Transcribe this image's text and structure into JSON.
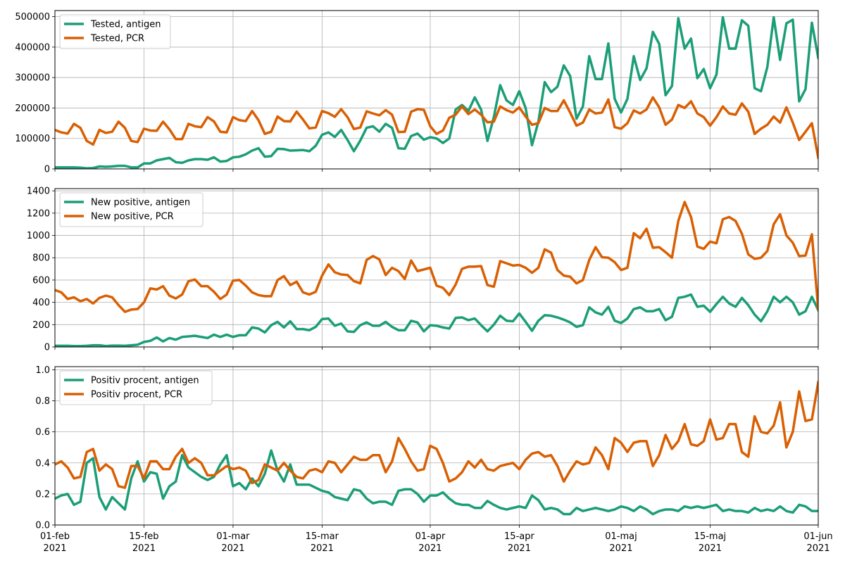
{
  "chart_data": [
    {
      "type": "line",
      "x_start": "2021-02-01",
      "x_end": "2021-06-01",
      "ylim": [
        0,
        520000
      ],
      "yticks": [
        0,
        100000,
        200000,
        300000,
        400000,
        500000
      ],
      "grid": true,
      "legend": "top-left",
      "series": [
        {
          "name": "Tested, antigen",
          "color": "#1b9e77",
          "values": [
            5000,
            5000,
            5000,
            5000,
            4000,
            2000,
            3000,
            8000,
            7000,
            8000,
            10000,
            10000,
            5000,
            5000,
            18000,
            18000,
            28000,
            32000,
            36000,
            22000,
            20000,
            28000,
            32000,
            32000,
            30000,
            38000,
            24000,
            26000,
            38000,
            40000,
            48000,
            60000,
            68000,
            40000,
            42000,
            66000,
            65000,
            60000,
            61000,
            62000,
            58000,
            76000,
            112000,
            120000,
            105000,
            128000,
            95000,
            58000,
            93000,
            135000,
            140000,
            122000,
            148000,
            135000,
            68000,
            66000,
            108000,
            116000,
            96000,
            104000,
            100000,
            85000,
            100000,
            195000,
            210000,
            190000,
            235000,
            195000,
            92000,
            170000,
            275000,
            225000,
            210000,
            255000,
            200000,
            78000,
            155000,
            285000,
            252000,
            270000,
            340000,
            305000,
            165000,
            205000,
            370000,
            295000,
            295000,
            412000,
            230000,
            185000,
            230000,
            370000,
            292000,
            330000,
            450000,
            410000,
            242000,
            272000,
            495000,
            395000,
            428000,
            298000,
            328000,
            265000,
            310000,
            498000,
            395000,
            395000,
            488000,
            470000,
            265000,
            255000,
            335000,
            498000,
            358000,
            478000,
            490000,
            222000,
            262000,
            480000,
            365000
          ]
        },
        {
          "name": "Tested, PCR",
          "color": "#d95f02",
          "values": [
            128000,
            120000,
            116000,
            148000,
            135000,
            92000,
            80000,
            128000,
            118000,
            122000,
            155000,
            135000,
            92000,
            88000,
            132000,
            126000,
            125000,
            155000,
            130000,
            98000,
            98000,
            148000,
            140000,
            137000,
            170000,
            156000,
            122000,
            120000,
            170000,
            160000,
            157000,
            190000,
            160000,
            115000,
            122000,
            172000,
            157000,
            156000,
            188000,
            162000,
            133000,
            136000,
            190000,
            183000,
            171000,
            196000,
            170000,
            131000,
            136000,
            189000,
            182000,
            176000,
            193000,
            178000,
            121000,
            122000,
            188000,
            196000,
            194000,
            140000,
            115000,
            126000,
            168000,
            178000,
            205000,
            180000,
            195000,
            178000,
            153000,
            155000,
            205000,
            193000,
            185000,
            202000,
            172000,
            145000,
            150000,
            200000,
            190000,
            190000,
            225000,
            185000,
            142000,
            152000,
            195000,
            182000,
            185000,
            228000,
            137000,
            132000,
            150000,
            192000,
            182000,
            195000,
            235000,
            202000,
            145000,
            162000,
            210000,
            200000,
            222000,
            182000,
            170000,
            142000,
            170000,
            205000,
            182000,
            178000,
            215000,
            188000,
            115000,
            132000,
            145000,
            172000,
            152000,
            202000,
            152000,
            95000,
            122000,
            150000,
            37000
          ]
        }
      ]
    },
    {
      "type": "line",
      "x_start": "2021-02-01",
      "x_end": "2021-06-01",
      "ylim": [
        0,
        1420
      ],
      "yticks": [
        0,
        200,
        400,
        600,
        800,
        1000,
        1200,
        1400
      ],
      "grid": true,
      "legend": "top-left",
      "series": [
        {
          "name": "New positive, antigen",
          "color": "#1b9e77",
          "values": [
            10,
            10,
            10,
            8,
            8,
            10,
            15,
            15,
            8,
            12,
            12,
            10,
            15,
            20,
            45,
            55,
            85,
            50,
            80,
            65,
            90,
            95,
            100,
            90,
            80,
            110,
            90,
            110,
            90,
            105,
            105,
            175,
            165,
            130,
            195,
            225,
            175,
            230,
            160,
            160,
            150,
            180,
            250,
            255,
            190,
            210,
            140,
            135,
            195,
            220,
            190,
            190,
            225,
            180,
            150,
            150,
            235,
            220,
            140,
            195,
            190,
            175,
            165,
            260,
            265,
            240,
            255,
            195,
            140,
            200,
            280,
            235,
            230,
            300,
            225,
            145,
            235,
            285,
            280,
            265,
            245,
            220,
            180,
            195,
            355,
            310,
            290,
            360,
            235,
            215,
            255,
            340,
            355,
            320,
            320,
            340,
            240,
            270,
            440,
            450,
            470,
            360,
            370,
            315,
            385,
            450,
            390,
            360,
            440,
            375,
            290,
            230,
            320,
            450,
            400,
            450,
            400,
            290,
            320,
            450,
            330
          ]
        },
        {
          "name": "New positive, PCR",
          "color": "#d95f02",
          "values": [
            510,
            490,
            430,
            445,
            410,
            430,
            390,
            440,
            460,
            445,
            375,
            315,
            335,
            340,
            400,
            525,
            515,
            545,
            460,
            435,
            470,
            590,
            605,
            545,
            545,
            495,
            430,
            470,
            595,
            600,
            550,
            490,
            465,
            455,
            455,
            600,
            635,
            555,
            585,
            490,
            470,
            495,
            640,
            740,
            670,
            650,
            645,
            590,
            570,
            780,
            815,
            785,
            645,
            710,
            680,
            610,
            775,
            680,
            695,
            710,
            550,
            530,
            465,
            560,
            700,
            720,
            720,
            725,
            555,
            540,
            770,
            750,
            730,
            735,
            710,
            665,
            710,
            875,
            845,
            690,
            640,
            630,
            570,
            600,
            780,
            895,
            805,
            800,
            760,
            690,
            710,
            1020,
            975,
            1060,
            890,
            895,
            850,
            800,
            1130,
            1300,
            1165,
            900,
            880,
            945,
            930,
            1145,
            1165,
            1130,
            1015,
            830,
            790,
            800,
            860,
            1100,
            1190,
            1000,
            935,
            815,
            820,
            1010,
            340
          ]
        }
      ]
    },
    {
      "type": "line",
      "x_start": "2021-02-01",
      "x_end": "2021-06-01",
      "ylim": [
        0,
        1.02
      ],
      "yticks": [
        0.0,
        0.2,
        0.4,
        0.6,
        0.8,
        1.0
      ],
      "grid": true,
      "legend": "top-left",
      "series": [
        {
          "name": "Positiv procent, antigen",
          "color": "#1b9e77",
          "values": [
            0.17,
            0.19,
            0.2,
            0.13,
            0.15,
            0.4,
            0.43,
            0.18,
            0.1,
            0.18,
            0.14,
            0.1,
            0.3,
            0.41,
            0.28,
            0.34,
            0.33,
            0.17,
            0.25,
            0.28,
            0.45,
            0.37,
            0.34,
            0.31,
            0.29,
            0.31,
            0.39,
            0.45,
            0.25,
            0.27,
            0.23,
            0.3,
            0.25,
            0.33,
            0.48,
            0.35,
            0.28,
            0.39,
            0.26,
            0.26,
            0.26,
            0.24,
            0.22,
            0.21,
            0.18,
            0.17,
            0.16,
            0.23,
            0.22,
            0.17,
            0.14,
            0.15,
            0.15,
            0.13,
            0.22,
            0.23,
            0.23,
            0.2,
            0.15,
            0.19,
            0.19,
            0.21,
            0.17,
            0.14,
            0.13,
            0.13,
            0.11,
            0.11,
            0.155,
            0.13,
            0.11,
            0.1,
            0.11,
            0.12,
            0.11,
            0.19,
            0.16,
            0.1,
            0.11,
            0.1,
            0.07,
            0.07,
            0.11,
            0.09,
            0.1,
            0.11,
            0.1,
            0.09,
            0.1,
            0.12,
            0.11,
            0.09,
            0.12,
            0.1,
            0.07,
            0.09,
            0.1,
            0.1,
            0.09,
            0.12,
            0.11,
            0.12,
            0.11,
            0.12,
            0.13,
            0.09,
            0.1,
            0.09,
            0.09,
            0.08,
            0.11,
            0.09,
            0.1,
            0.09,
            0.12,
            0.09,
            0.08,
            0.13,
            0.12,
            0.09,
            0.09
          ]
        },
        {
          "name": "Positiv procent, PCR",
          "color": "#d95f02",
          "values": [
            0.39,
            0.41,
            0.37,
            0.3,
            0.31,
            0.47,
            0.49,
            0.35,
            0.39,
            0.36,
            0.25,
            0.24,
            0.38,
            0.38,
            0.3,
            0.41,
            0.41,
            0.36,
            0.36,
            0.44,
            0.49,
            0.4,
            0.43,
            0.4,
            0.32,
            0.32,
            0.35,
            0.38,
            0.36,
            0.37,
            0.35,
            0.27,
            0.29,
            0.39,
            0.37,
            0.35,
            0.4,
            0.35,
            0.31,
            0.3,
            0.35,
            0.36,
            0.34,
            0.41,
            0.4,
            0.34,
            0.39,
            0.44,
            0.42,
            0.42,
            0.45,
            0.45,
            0.34,
            0.41,
            0.56,
            0.49,
            0.41,
            0.35,
            0.36,
            0.51,
            0.49,
            0.4,
            0.28,
            0.3,
            0.34,
            0.41,
            0.37,
            0.42,
            0.36,
            0.35,
            0.38,
            0.39,
            0.4,
            0.36,
            0.42,
            0.46,
            0.47,
            0.44,
            0.45,
            0.38,
            0.28,
            0.35,
            0.41,
            0.39,
            0.4,
            0.5,
            0.45,
            0.36,
            0.56,
            0.53,
            0.47,
            0.53,
            0.54,
            0.54,
            0.38,
            0.45,
            0.58,
            0.49,
            0.54,
            0.65,
            0.52,
            0.51,
            0.54,
            0.68,
            0.55,
            0.56,
            0.65,
            0.65,
            0.47,
            0.44,
            0.7,
            0.6,
            0.59,
            0.64,
            0.79,
            0.5,
            0.6,
            0.86,
            0.67,
            0.68,
            0.92
          ]
        }
      ]
    }
  ],
  "x_tick_labels": [
    {
      "day": "01-feb",
      "year": "2021"
    },
    {
      "day": "15-feb",
      "year": "2021"
    },
    {
      "day": "01-mar",
      "year": "2021"
    },
    {
      "day": "15-mar",
      "year": "2021"
    },
    {
      "day": "01-apr",
      "year": "2021"
    },
    {
      "day": "15-apr",
      "year": "2021"
    },
    {
      "day": "01-maj",
      "year": "2021"
    },
    {
      "day": "15-maj",
      "year": "2021"
    },
    {
      "day": "01-jun",
      "year": "2021"
    }
  ],
  "x_tick_dates": [
    "2021-02-01",
    "2021-02-15",
    "2021-03-01",
    "2021-03-15",
    "2021-04-01",
    "2021-04-15",
    "2021-05-01",
    "2021-05-15",
    "2021-06-01"
  ],
  "y_tick_labels": [
    [
      "0",
      "100000",
      "200000",
      "300000",
      "400000",
      "500000"
    ],
    [
      "0",
      "200",
      "400",
      "600",
      "800",
      "1000",
      "1200",
      "1400"
    ],
    [
      "0.0",
      "0.2",
      "0.4",
      "0.6",
      "0.8",
      "1.0"
    ]
  ]
}
